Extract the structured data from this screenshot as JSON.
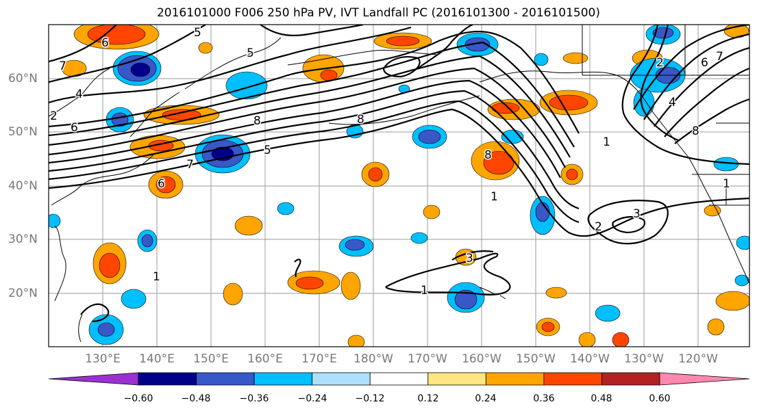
{
  "title": "2016101000 F006 250 hPa PV, IVT Landfall PC (2016101300 - 2016101500)",
  "lon_labels": [
    "130°E",
    "140°E",
    "150°E",
    "160°E",
    "170°E",
    "180°W",
    "170°W",
    "160°W",
    "150°W",
    "140°W",
    "130°W",
    "120°W"
  ],
  "lat_labels": [
    "60°N",
    "50°N",
    "40°N",
    "30°N",
    "20°N"
  ],
  "colorbar": {
    "ticks": [
      "−0.60",
      "−0.48",
      "−0.36",
      "−0.24",
      "−0.12",
      "0.12",
      "0.24",
      "0.36",
      "0.48",
      "0.60"
    ],
    "colors": [
      "#9b30d0",
      "#00008b",
      "#3858c8",
      "#00bfff",
      "#b0e0ff",
      "#ffffff",
      "#ffe680",
      "#ffa500",
      "#ff4500",
      "#b22222",
      "#ff88b0"
    ]
  },
  "contour_labels": [
    "5",
    "6",
    "4",
    "7",
    "6",
    "8",
    "5",
    "8",
    "7",
    "6",
    "5",
    "4",
    "3",
    "2",
    "1",
    "8",
    "3",
    "2",
    "1",
    "1",
    "1",
    "1",
    "2",
    "6",
    "7",
    "8"
  ]
}
